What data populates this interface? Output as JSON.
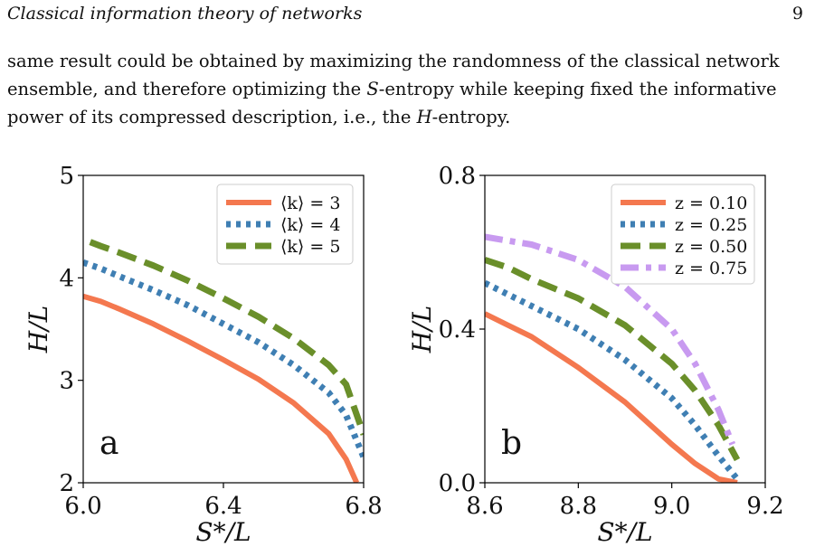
{
  "header": {
    "running_title": "Classical information theory of networks",
    "page_number": "9"
  },
  "paragraph": {
    "line1": "same result could be obtained by maximizing the randomness of the classical network",
    "line2a": "ensemble, and therefore optimizing the ",
    "line2_S": "S",
    "line2b": "-entropy while keeping fixed the informative",
    "line3a": "power of its compressed description, i.e., the ",
    "line3_H": "H",
    "line3b": "-entropy."
  },
  "chart_data": [
    {
      "type": "line",
      "panel_label": "a",
      "xlabel": "S*/L",
      "ylabel": "H/L",
      "xlim": [
        6.0,
        6.8
      ],
      "ylim": [
        2,
        5
      ],
      "xticks": [
        "6.0",
        "6.4",
        "6.8"
      ],
      "yticks": [
        "2",
        "3",
        "4",
        "5"
      ],
      "legend_position": "top-right",
      "series": [
        {
          "name": "⟨k⟩ = 3",
          "color": "#f4784f",
          "dash": "solid",
          "x": [
            6.0,
            6.05,
            6.1,
            6.2,
            6.3,
            6.4,
            6.5,
            6.6,
            6.7,
            6.75,
            6.78
          ],
          "y": [
            3.82,
            3.77,
            3.7,
            3.55,
            3.38,
            3.2,
            3.01,
            2.78,
            2.48,
            2.23,
            2.0
          ]
        },
        {
          "name": "⟨k⟩ = 4",
          "color": "#3f7fb3",
          "dash": "dotted",
          "x": [
            6.0,
            6.05,
            6.1,
            6.2,
            6.3,
            6.4,
            6.5,
            6.6,
            6.7,
            6.75,
            6.8
          ],
          "y": [
            4.15,
            4.09,
            4.02,
            3.88,
            3.73,
            3.55,
            3.37,
            3.15,
            2.88,
            2.66,
            2.25
          ]
        },
        {
          "name": "⟨k⟩ = 5",
          "color": "#6a8f2a",
          "dash": "dashed",
          "x": [
            6.02,
            6.05,
            6.1,
            6.2,
            6.3,
            6.4,
            6.5,
            6.6,
            6.7,
            6.75,
            6.8
          ],
          "y": [
            4.35,
            4.31,
            4.25,
            4.12,
            3.97,
            3.8,
            3.62,
            3.41,
            3.15,
            2.96,
            2.47
          ]
        }
      ]
    },
    {
      "type": "line",
      "panel_label": "b",
      "xlabel": "S*/L",
      "ylabel": "H/L",
      "xlim": [
        8.6,
        9.2
      ],
      "ylim": [
        0.0,
        0.8
      ],
      "xticks": [
        "8.6",
        "8.8",
        "9.0",
        "9.2"
      ],
      "yticks": [
        "0.0",
        "0.4",
        "0.8"
      ],
      "legend_position": "top-right",
      "series": [
        {
          "name": "z = 0.10",
          "color": "#f4784f",
          "dash": "solid",
          "x": [
            8.6,
            8.65,
            8.7,
            8.8,
            8.9,
            9.0,
            9.05,
            9.1,
            9.14
          ],
          "y": [
            0.44,
            0.41,
            0.38,
            0.3,
            0.21,
            0.1,
            0.05,
            0.01,
            0.0
          ]
        },
        {
          "name": "z = 0.25",
          "color": "#3f7fb3",
          "dash": "dotted",
          "x": [
            8.6,
            8.65,
            8.7,
            8.8,
            8.9,
            9.0,
            9.05,
            9.1,
            9.14
          ],
          "y": [
            0.52,
            0.49,
            0.46,
            0.4,
            0.32,
            0.22,
            0.15,
            0.07,
            0.01
          ]
        },
        {
          "name": "z = 0.50",
          "color": "#6a8f2a",
          "dash": "dashed",
          "x": [
            8.6,
            8.65,
            8.7,
            8.8,
            8.9,
            9.0,
            9.05,
            9.1,
            9.14
          ],
          "y": [
            0.58,
            0.56,
            0.53,
            0.48,
            0.41,
            0.31,
            0.24,
            0.15,
            0.06
          ]
        },
        {
          "name": "z = 0.75",
          "color": "#c89af0",
          "dash": "dashdot",
          "x": [
            8.6,
            8.65,
            8.7,
            8.8,
            8.9,
            9.0,
            9.05,
            9.1,
            9.13
          ],
          "y": [
            0.64,
            0.63,
            0.62,
            0.58,
            0.51,
            0.4,
            0.31,
            0.19,
            0.1
          ]
        }
      ]
    }
  ]
}
